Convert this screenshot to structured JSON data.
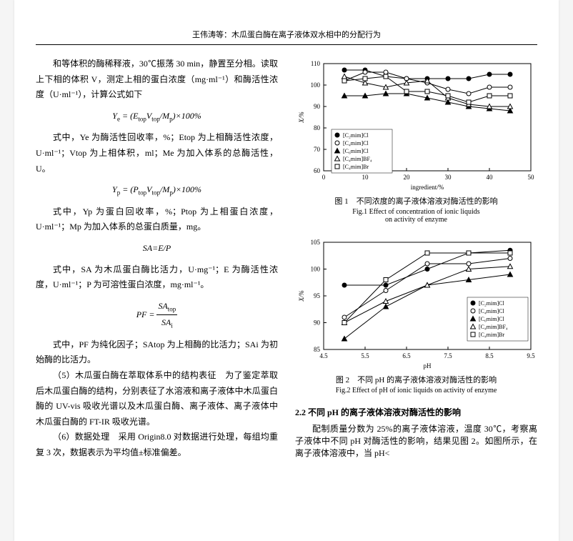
{
  "header_title": "王伟涛等：木瓜蛋白酶在离子液体双水相中的分配行为",
  "left": {
    "p1": "和等体积的酶稀释液，30℃振荡 30 min，静置至分相。读取上下相的体积 V，测定上相的蛋白浓度（mg·ml⁻¹）和酶活性浓度（U·ml⁻¹），计算公式如下",
    "f1": "Ye = (Etop Vtop / Mp) × 100%",
    "e1_1": "式中，Ye 为酶活性回收率，%；Etop 为上相酶活性浓度，U·ml⁻¹；Vtop 为上相体积，ml；Me 为加入体系的总酶活性，U。",
    "f2": "Yp = (Ptop Vtop / Mp) × 100%",
    "e2_1": "式中，Yp 为蛋白回收率，%；Ptop 为上相蛋白浓度，U·ml⁻¹；Mp 为加入体系的总蛋白质量，mg。",
    "f3": "SA = E/P",
    "e3_1": "式中，SA 为木瓜蛋白酶比活力，U·mg⁻¹；E 为酶活性浓度，U·ml⁻¹；P 为可溶性蛋白浓度，mg·ml⁻¹。",
    "f4_top": "SAtop",
    "f4_bot": "SAi",
    "f4_pre": "PF = ",
    "e4_1": "式中，PF 为纯化因子；SAtop 为上相酶的比活力；SAi 为初始酶的比活力。",
    "p5": "（5）木瓜蛋白酶在萃取体系中的结构表征　为了鉴定萃取后木瓜蛋白酶的结构，分别表征了水溶液和离子液体中木瓜蛋白酶的 UV-vis 吸收光谱以及木瓜蛋白酶、离子液体、离子液体中木瓜蛋白酶的 FT-IR 吸收光谱。",
    "p6": "（6）数据处理　采用 Origin8.0 对数据进行处理，每组均重复 3 次，数据表示为平均值±标准偏差。"
  },
  "right": {
    "fig1": {
      "caption_cn": "图 1　不同浓度的离子液体溶液对酶活性的影响",
      "caption_en1": "Fig.1  Effect of concentration of ionic liquids",
      "caption_en2": "on activity of enzyme",
      "xlabel": "ingredient/%",
      "ylabel": "X/%",
      "xlim": [
        0,
        50
      ],
      "ylim": [
        60,
        110
      ],
      "xtick_step": 10,
      "ytick_step": 10,
      "legend": [
        "[C₂mim]Cl",
        "[C₄mim]Cl",
        "[C₆mim]Cl",
        "[C₄mim]BF₄",
        "[C₄mim]Br"
      ],
      "markers": [
        "●",
        "○",
        "▲",
        "△",
        "□"
      ],
      "colors": {
        "line": "#000000",
        "bg": "#ffffff",
        "axis": "#000000"
      },
      "series": {
        "x": [
          5,
          10,
          15,
          20,
          25,
          30,
          35,
          40,
          45
        ],
        "y1": [
          107,
          107,
          104,
          103,
          103,
          103,
          103,
          105,
          105
        ],
        "y2": [
          102,
          106,
          106,
          103,
          101,
          98,
          96,
          99,
          99
        ],
        "y3": [
          95,
          95,
          96,
          96,
          94,
          92,
          90,
          89,
          88
        ],
        "y4": [
          104,
          101,
          99,
          101,
          102,
          94,
          91,
          90,
          90
        ],
        "y5": [
          102,
          103,
          104,
          97,
          97,
          95,
          92,
          95,
          95
        ]
      },
      "font_size": 9
    },
    "fig2": {
      "caption_cn": "图 2　不同 pH 的离子液体溶液对酶活性的影响",
      "caption_en": "Fig.2  Effect of pH of ionic liquids on activity of enzyme",
      "xlabel": "pH",
      "ylabel": "X/%",
      "xlim": [
        4.5,
        9.5
      ],
      "ylim": [
        85,
        105
      ],
      "xtick_step": 1,
      "ytick_step": 5,
      "legend": [
        "[C₂mim]Cl",
        "[C₄mim]Cl",
        "[C₆mim]Cl",
        "[C₄mim]BF₄",
        "[C₄mim]Br"
      ],
      "markers": [
        "●",
        "○",
        "▲",
        "△",
        "□"
      ],
      "colors": {
        "line": "#000000",
        "bg": "#ffffff",
        "axis": "#000000"
      },
      "series": {
        "x": [
          5.0,
          6.0,
          7.0,
          8.0,
          9.0
        ],
        "y1": [
          97,
          97,
          100,
          103,
          103.5
        ],
        "y2": [
          91,
          96,
          101,
          101,
          102
        ],
        "y3": [
          87,
          93,
          97,
          98,
          99
        ],
        "y4": [
          90,
          94,
          97,
          100,
          100.5
        ],
        "y5": [
          90,
          98,
          103,
          103,
          103
        ]
      },
      "font_size": 9
    },
    "section_22_title": "2.2  不同 pH 的离子液体溶液对酶活性的影响",
    "section_22_body": "配制质量分数为 25%的离子液体溶液，温度 30℃，考察离子液体中不同 pH 对酶活性的影响，结果见图 2。如图所示，在离子液体溶液中，当 pH<"
  }
}
